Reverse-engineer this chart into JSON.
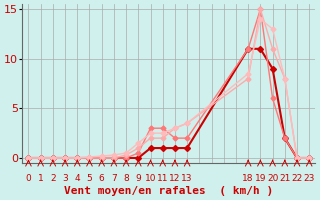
{
  "xlabel": "Vent moyen/en rafales  ( km/h )",
  "bg_color": "#cff0ec",
  "grid_color": "#aaaaaa",
  "ylim": [
    -0.5,
    15.5
  ],
  "yticks": [
    0,
    5,
    10,
    15
  ],
  "ylabel_vals": [
    "0",
    "5",
    "10",
    "15"
  ],
  "xlabels": [
    "0",
    "1",
    "2",
    "3",
    "4",
    "5",
    "6",
    "7",
    "8",
    "9",
    "10",
    "11",
    "12",
    "13",
    "",
    "",
    "",
    "",
    "18",
    "19",
    "20",
    "21",
    "22",
    "23"
  ],
  "n_cols": 24,
  "series": [
    {
      "xi": [
        0,
        1,
        2,
        3,
        4,
        5,
        6,
        7,
        8,
        9,
        10,
        11,
        12,
        13,
        18,
        19,
        20,
        21,
        22,
        23
      ],
      "y": [
        0,
        0,
        0,
        0,
        0,
        0,
        0,
        0,
        0,
        0,
        1,
        1,
        1,
        1,
        11,
        11,
        9,
        2,
        0,
        0
      ],
      "color": "#cc0000",
      "lw": 1.5,
      "ms": 3
    },
    {
      "xi": [
        0,
        1,
        2,
        3,
        4,
        5,
        6,
        7,
        8,
        9,
        10,
        11,
        12,
        13,
        18,
        19,
        20,
        21,
        22,
        23
      ],
      "y": [
        0,
        0,
        0,
        0,
        0,
        0,
        0,
        0,
        0,
        0.5,
        3,
        3,
        2,
        2,
        11,
        15,
        6,
        2,
        0,
        0
      ],
      "color": "#ff7777",
      "lw": 1.0,
      "ms": 2.5
    },
    {
      "xi": [
        0,
        1,
        2,
        3,
        4,
        5,
        6,
        7,
        8,
        9,
        10,
        11,
        12,
        13,
        18,
        19,
        20,
        21,
        22,
        23
      ],
      "y": [
        0,
        0,
        0,
        0,
        0,
        0,
        0,
        0,
        0.3,
        1,
        2,
        2,
        3,
        3.5,
        8,
        15,
        11,
        8,
        0,
        0
      ],
      "color": "#ffaaaa",
      "lw": 1.0,
      "ms": 2.5
    },
    {
      "xi": [
        0,
        1,
        2,
        3,
        4,
        5,
        6,
        7,
        8,
        9,
        10,
        11,
        12,
        13,
        18,
        19,
        20,
        21,
        22,
        23
      ],
      "y": [
        0,
        0,
        0,
        0,
        0,
        0.1,
        0.2,
        0.3,
        0.5,
        1.5,
        2.5,
        2.5,
        3,
        3.5,
        8.5,
        14,
        13,
        8,
        0,
        0
      ],
      "color": "#ffbbbb",
      "lw": 1.0,
      "ms": 2.5
    }
  ],
  "arrow_xi": [
    0,
    1,
    2,
    3,
    4,
    5,
    6,
    7,
    8,
    9,
    10,
    11,
    12,
    13,
    18,
    19,
    20,
    21,
    22,
    23
  ],
  "xlabel_fontsize": 8,
  "ytick_fontsize": 8,
  "xtick_fontsize": 6.5
}
